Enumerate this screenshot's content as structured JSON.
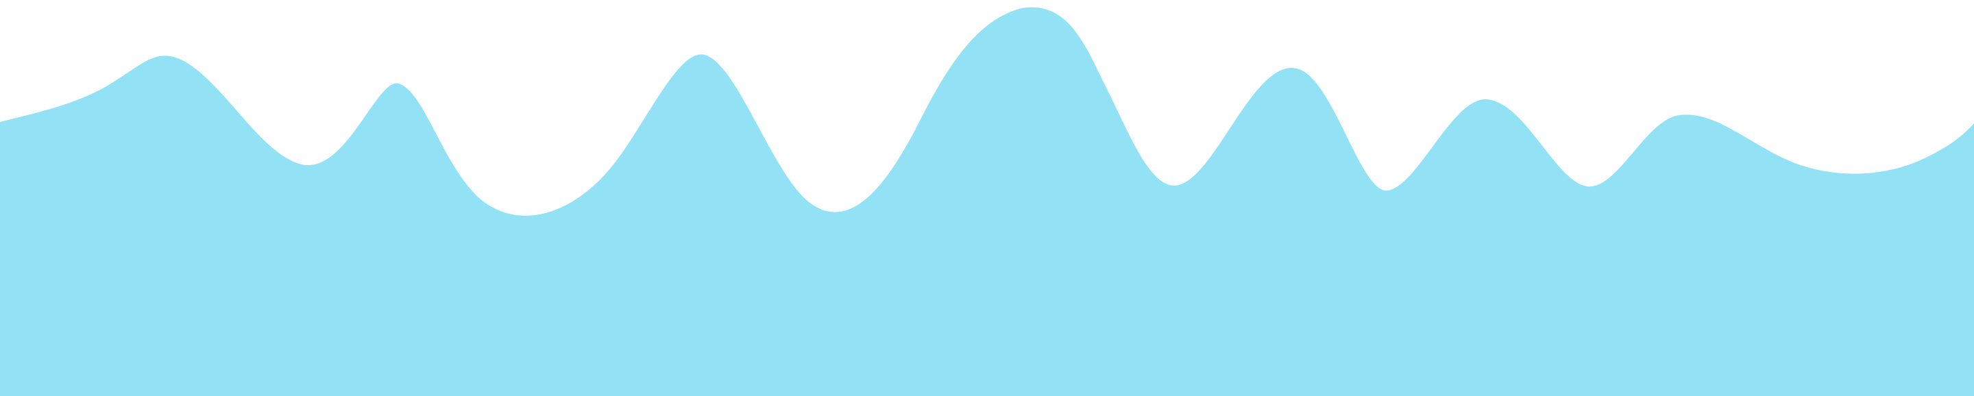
{
  "background_color": "#ffffff",
  "wave": {
    "shape": "wave-divider",
    "fill_color": "#93e1f5"
  }
}
